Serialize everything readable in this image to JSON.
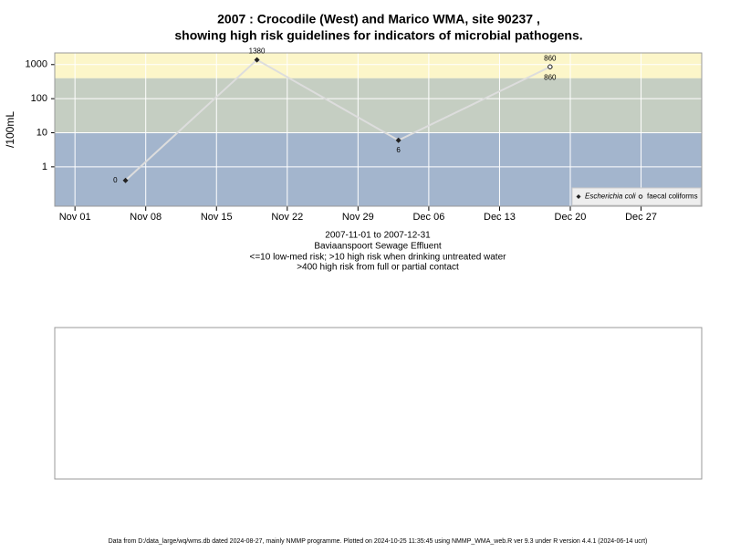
{
  "chart_data": {
    "type": "line",
    "title": "2007 : Crocodile (West) and Marico WMA, site 90237 ,",
    "subtitle": "showing high risk guidelines for indicators of microbial pathogens.",
    "y_label": "/100mL",
    "notes": [
      "2007-11-01 to 2007-12-31",
      "Baviaanspoort Sewage Effluent",
      "<=10 low-med risk; >10 high risk when drinking untreated water",
      ">400 high risk from full or partial contact"
    ],
    "footer": "Data from D:/data_large/wq/wms.db dated 2024-08-27, mainly NMMP programme. Plotted on 2024-10-25 11:35:45 using NMMP_WMA_web.R ver 9.3 under R version 4.4.1 (2024-06-14 ucrt)",
    "x": [
      "2007-11-06",
      "2007-11-19",
      "2007-12-03",
      "2007-12-18"
    ],
    "series": [
      {
        "name": "Escherichia coli",
        "color": "#222222",
        "line_color": "#dddddd",
        "marker": "diamond",
        "values": [
          0.4,
          1380,
          6,
          860
        ],
        "value_labels": [
          "0",
          "1380",
          "6",
          "860"
        ]
      },
      {
        "name": "faecal coliforms",
        "color": "#222222",
        "marker": "circle",
        "values": [
          null,
          null,
          null,
          860
        ],
        "value_labels": [
          null,
          null,
          null,
          "860"
        ]
      }
    ],
    "log_scale": true,
    "xlim": [
      "2007-10-30",
      "2008-01-02"
    ],
    "xticks": [
      {
        "value": "2007-11-01",
        "label": "Nov 01"
      },
      {
        "value": "2007-11-08",
        "label": "Nov 08"
      },
      {
        "value": "2007-11-15",
        "label": "Nov 15"
      },
      {
        "value": "2007-11-22",
        "label": "Nov 22"
      },
      {
        "value": "2007-11-29",
        "label": "Nov 29"
      },
      {
        "value": "2007-12-06",
        "label": "Dec 06"
      },
      {
        "value": "2007-12-13",
        "label": "Dec 13"
      },
      {
        "value": "2007-12-20",
        "label": "Dec 20"
      },
      {
        "value": "2007-12-27",
        "label": "Dec 27"
      }
    ],
    "ylim": [
      0.07,
      2200
    ],
    "yticks": [
      1,
      10,
      100,
      1000
    ],
    "thresholds": [
      10,
      400
    ],
    "band_colors": [
      "#a3b5cd",
      "#c5cec2",
      "#fcf6c9"
    ],
    "grid": true,
    "legend": "bottom-right"
  }
}
